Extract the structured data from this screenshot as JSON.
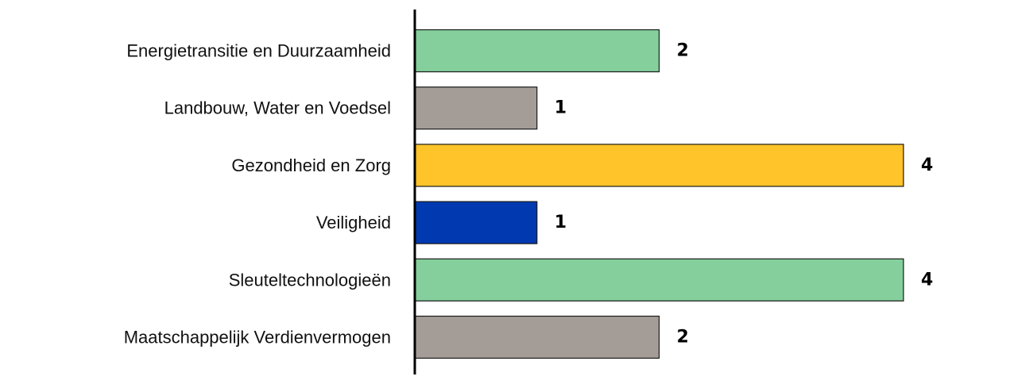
{
  "chart_data": {
    "type": "bar",
    "orientation": "horizontal",
    "title": "",
    "xlabel": "",
    "ylabel": "",
    "xlim": [
      0,
      4
    ],
    "grid": false,
    "legend": "none",
    "categories": [
      "Energietransitie en Duurzaamheid",
      "Landbouw, Water en Voedsel",
      "Gezondheid en Zorg",
      "Veiligheid",
      "Sleuteltechnologieën",
      "Maatschappelijk Verdienvermogen"
    ],
    "values": [
      2,
      1,
      4,
      1,
      4,
      2
    ],
    "colors": [
      "#84cf9c",
      "#a39c97",
      "#ffc429",
      "#0039b0",
      "#84cf9c",
      "#a39c97"
    ]
  }
}
